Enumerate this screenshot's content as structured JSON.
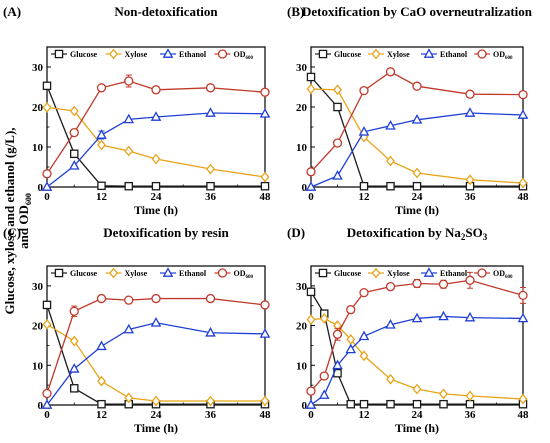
{
  "figure": {
    "shared_ylabel_line1": "Glucose, xylose and ethanol (g/L),",
    "shared_ylabel_line2": "and OD",
    "shared_ylabel_sub": "600"
  },
  "series_styles": {
    "Glucose": {
      "color": "#1a1a1a",
      "marker": "square"
    },
    "Xylose": {
      "color": "#e8a317",
      "marker": "diamond"
    },
    "Ethanol": {
      "color": "#1f3fd6",
      "marker": "triangle"
    },
    "OD600": {
      "color": "#c0392b",
      "marker": "circle"
    }
  },
  "chart_data": [
    {
      "type": "line",
      "panel_letter": "(A)",
      "title": "Non-detoxification",
      "xlabel": "Time (h)",
      "ylabel": "",
      "xlim": [
        0,
        48
      ],
      "ylim": [
        0,
        35
      ],
      "xticks": [
        0,
        12,
        24,
        36,
        48
      ],
      "yticks": [
        0,
        10,
        20,
        30
      ],
      "legend": "top-right",
      "series": [
        {
          "name": "Glucose",
          "x": [
            0,
            6,
            12,
            18,
            24,
            36,
            48
          ],
          "y": [
            25.3,
            8.3,
            0.3,
            0.2,
            0.2,
            0.2,
            0.2
          ]
        },
        {
          "name": "Xylose",
          "x": [
            0,
            6,
            12,
            18,
            24,
            36,
            48
          ],
          "y": [
            19.9,
            19.0,
            10.5,
            9.0,
            7.0,
            4.5,
            2.5
          ]
        },
        {
          "name": "Ethanol",
          "x": [
            0,
            6,
            12,
            18,
            24,
            36,
            48
          ],
          "y": [
            0.0,
            5.3,
            13.0,
            16.9,
            17.5,
            18.5,
            18.3
          ],
          "err": [
            0,
            0,
            1.0,
            0,
            0,
            0,
            0
          ]
        },
        {
          "name": "OD600",
          "x": [
            0,
            6,
            12,
            18,
            24,
            36,
            48
          ],
          "y": [
            3.3,
            13.6,
            24.8,
            26.5,
            24.3,
            24.8,
            23.7
          ],
          "err": [
            0,
            0,
            0,
            1.5,
            0,
            0,
            0
          ]
        }
      ]
    },
    {
      "type": "line",
      "panel_letter": "(B)",
      "title": "Detoxification by CaO overneutralization",
      "xlabel": "Time (h)",
      "ylabel": "",
      "xlim": [
        0,
        48
      ],
      "ylim": [
        0,
        35
      ],
      "xticks": [
        0,
        12,
        24,
        36,
        48
      ],
      "yticks": [
        0,
        10,
        20,
        30
      ],
      "legend": "top-right",
      "series": [
        {
          "name": "Glucose",
          "x": [
            0,
            6,
            12,
            18,
            24,
            36,
            48
          ],
          "y": [
            27.5,
            20.0,
            0.2,
            0.2,
            0.2,
            0.2,
            0.2
          ]
        },
        {
          "name": "Xylose",
          "x": [
            0,
            6,
            12,
            18,
            24,
            36,
            48
          ],
          "y": [
            24.5,
            24.3,
            12.5,
            6.5,
            3.5,
            1.8,
            1.0
          ]
        },
        {
          "name": "Ethanol",
          "x": [
            0,
            6,
            12,
            18,
            24,
            36,
            48
          ],
          "y": [
            0.0,
            2.8,
            13.8,
            15.3,
            16.8,
            18.5,
            18.0
          ]
        },
        {
          "name": "OD600",
          "x": [
            0,
            6,
            12,
            18,
            24,
            36,
            48
          ],
          "y": [
            3.8,
            11.0,
            24.1,
            28.8,
            25.2,
            23.2,
            23.1
          ],
          "err": [
            0,
            0,
            0,
            0.8,
            0,
            0.8,
            0
          ]
        }
      ]
    },
    {
      "type": "line",
      "panel_letter": "(C)",
      "title": "Detoxification by resin",
      "xlabel": "Time (h)",
      "ylabel": "",
      "xlim": [
        0,
        48
      ],
      "ylim": [
        0,
        35
      ],
      "xticks": [
        0,
        12,
        24,
        36,
        48
      ],
      "yticks": [
        0,
        10,
        20,
        30
      ],
      "legend": "top-right",
      "series": [
        {
          "name": "Glucose",
          "x": [
            0,
            6,
            12,
            18,
            24,
            36,
            48
          ],
          "y": [
            25.2,
            4.2,
            0.2,
            0.2,
            0.2,
            0.2,
            0.2
          ]
        },
        {
          "name": "Xylose",
          "x": [
            0,
            6,
            12,
            18,
            24,
            36,
            48
          ],
          "y": [
            20.3,
            16.1,
            6.0,
            1.8,
            1.0,
            1.0,
            1.0
          ]
        },
        {
          "name": "Ethanol",
          "x": [
            0,
            6,
            12,
            18,
            24,
            36,
            48
          ],
          "y": [
            0.0,
            9.1,
            14.8,
            19.0,
            20.7,
            18.2,
            17.9
          ]
        },
        {
          "name": "OD600",
          "x": [
            0,
            6,
            12,
            18,
            24,
            36,
            48
          ],
          "y": [
            2.9,
            23.6,
            26.8,
            26.4,
            26.8,
            26.8,
            25.2
          ],
          "err": [
            0,
            1.3,
            0,
            0,
            0,
            0,
            0
          ]
        }
      ]
    },
    {
      "type": "line",
      "panel_letter": "(D)",
      "title": "Detoxification by Na",
      "title_sub": "2",
      "title_end": "SO",
      "title_sub2": "3",
      "xlabel": "Time (h)",
      "ylabel": "",
      "xlim": [
        0,
        48
      ],
      "ylim": [
        0,
        35
      ],
      "xticks": [
        0,
        12,
        24,
        36,
        48
      ],
      "yticks": [
        0,
        10,
        20,
        30
      ],
      "legend": "top-right",
      "series": [
        {
          "name": "Glucose",
          "x": [
            0,
            3,
            6,
            9,
            12,
            18,
            24,
            30,
            36,
            48
          ],
          "y": [
            28.5,
            23.0,
            8.0,
            0.2,
            0.2,
            0.2,
            0.2,
            0.2,
            0.2,
            0.2
          ]
        },
        {
          "name": "Xylose",
          "x": [
            0,
            3,
            6,
            9,
            12,
            18,
            24,
            30,
            36,
            48
          ],
          "y": [
            21.5,
            21.8,
            20.0,
            16.5,
            12.4,
            6.5,
            4.0,
            2.8,
            2.3,
            1.5
          ]
        },
        {
          "name": "Ethanol",
          "x": [
            0,
            3,
            6,
            9,
            12,
            18,
            24,
            30,
            36,
            48
          ],
          "y": [
            0.0,
            2.5,
            10.0,
            14.0,
            17.3,
            20.2,
            21.8,
            22.3,
            22.0,
            21.8
          ]
        },
        {
          "name": "OD600",
          "x": [
            0,
            3,
            6,
            9,
            12,
            18,
            24,
            30,
            36,
            48
          ],
          "y": [
            3.5,
            7.3,
            17.8,
            24.0,
            28.3,
            29.8,
            30.6,
            30.4,
            31.4,
            27.6
          ],
          "err": [
            0,
            0,
            1.5,
            0,
            0,
            0.8,
            1.0,
            1.0,
            2.0,
            2.0
          ]
        }
      ]
    }
  ]
}
